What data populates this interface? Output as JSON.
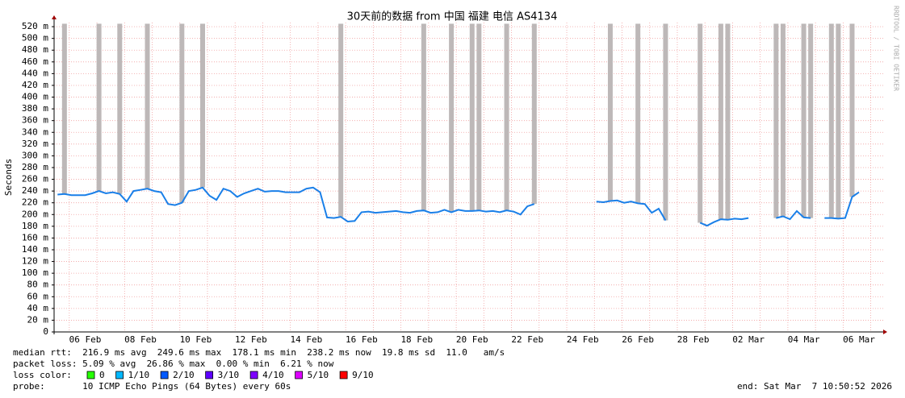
{
  "chart_data": {
    "type": "line",
    "title": "30天前的数据 from 中国 福建 电信 AS4134",
    "ylabel": "Seconds",
    "credit": "RRDTOOL / TOBI OETIKER",
    "color": "#1a7fe8",
    "smoke_color": "#bdb8b8",
    "grid": true,
    "ylim": [
      0,
      527
    ],
    "yticks": [
      0,
      {
        "value": 20,
        "label": "20 m"
      },
      {
        "value": 40,
        "label": "40 m"
      },
      {
        "value": 60,
        "label": "60 m"
      },
      {
        "value": 80,
        "label": "80 m"
      },
      {
        "value": 100,
        "label": "100 m"
      },
      {
        "value": 120,
        "label": "120 m"
      },
      {
        "value": 140,
        "label": "140 m"
      },
      {
        "value": 160,
        "label": "160 m"
      },
      {
        "value": 180,
        "label": "180 m"
      },
      {
        "value": 200,
        "label": "200 m"
      },
      {
        "value": 220,
        "label": "220 m"
      },
      {
        "value": 240,
        "label": "240 m"
      },
      {
        "value": 260,
        "label": "260 m"
      },
      {
        "value": 280,
        "label": "280 m"
      },
      {
        "value": 300,
        "label": "300 m"
      },
      {
        "value": 320,
        "label": "320 m"
      },
      {
        "value": 340,
        "label": "340 m"
      },
      {
        "value": 360,
        "label": "360 m"
      },
      {
        "value": 380,
        "label": "380 m"
      },
      {
        "value": 400,
        "label": "400 m"
      },
      {
        "value": 420,
        "label": "420 m"
      },
      {
        "value": 440,
        "label": "440 m"
      },
      {
        "value": 460,
        "label": "460 m"
      },
      {
        "value": 480,
        "label": "480 m"
      },
      {
        "value": 500,
        "label": "500 m"
      },
      {
        "value": 520,
        "label": "520 m"
      }
    ],
    "categories": [
      null,
      null,
      null,
      null,
      "06 Feb",
      null,
      null,
      null,
      null,
      null,
      null,
      null,
      "08 Feb",
      null,
      null,
      null,
      null,
      null,
      null,
      null,
      "10 Feb",
      null,
      null,
      null,
      null,
      null,
      null,
      null,
      "12 Feb",
      null,
      null,
      null,
      null,
      null,
      null,
      null,
      "14 Feb",
      null,
      null,
      null,
      null,
      null,
      null,
      null,
      "16 Feb",
      null,
      null,
      null,
      null,
      null,
      null,
      null,
      "18 Feb",
      null,
      null,
      null,
      null,
      null,
      null,
      null,
      "20 Feb",
      null,
      null,
      null,
      null,
      null,
      null,
      null,
      "22 Feb",
      null,
      null,
      null,
      null,
      null,
      null,
      null,
      "24 Feb",
      null,
      null,
      null,
      null,
      null,
      null,
      null,
      "26 Feb",
      null,
      null,
      null,
      null,
      null,
      null,
      null,
      "28 Feb",
      null,
      null,
      null,
      null,
      null,
      null,
      null,
      "02 Mar",
      null,
      null,
      null,
      null,
      null,
      null,
      null,
      "04 Mar",
      null,
      null,
      null,
      null,
      null,
      null,
      null,
      "06 Mar",
      null,
      null,
      null
    ],
    "values": [
      234,
      235,
      233,
      233,
      233,
      236,
      240,
      236,
      238,
      235,
      222,
      240,
      242,
      244,
      240,
      238,
      218,
      216,
      220,
      240,
      242,
      246,
      232,
      225,
      244,
      240,
      230,
      236,
      240,
      244,
      239,
      240,
      240,
      238,
      238,
      238,
      244,
      246,
      238,
      195,
      194,
      196,
      188,
      189,
      204,
      205,
      203,
      204,
      205,
      206,
      204,
      203,
      206,
      207,
      203,
      204,
      208,
      204,
      208,
      206,
      206,
      207,
      205,
      206,
      204,
      207,
      205,
      200,
      214,
      218,
      null,
      null,
      null,
      null,
      null,
      null,
      null,
      null,
      222,
      221,
      223,
      224,
      220,
      222,
      219,
      218,
      203,
      210,
      190,
      null,
      null,
      null,
      null,
      186,
      181,
      187,
      192,
      191,
      193,
      192,
      194,
      null,
      null,
      null,
      194,
      197,
      192,
      206,
      195,
      194,
      null,
      194,
      194,
      193,
      194,
      230,
      238,
      null,
      null,
      null
    ],
    "smoke_max": [
      null,
      525,
      null,
      null,
      null,
      null,
      525,
      null,
      null,
      525,
      null,
      null,
      null,
      525,
      null,
      null,
      null,
      null,
      525,
      null,
      null,
      525,
      null,
      null,
      null,
      null,
      null,
      null,
      null,
      null,
      null,
      null,
      null,
      null,
      null,
      null,
      null,
      null,
      null,
      null,
      null,
      525,
      null,
      null,
      null,
      null,
      null,
      null,
      null,
      null,
      null,
      null,
      null,
      525,
      null,
      null,
      null,
      525,
      null,
      null,
      525,
      525,
      null,
      null,
      null,
      525,
      null,
      null,
      null,
      525,
      null,
      null,
      null,
      null,
      null,
      null,
      null,
      null,
      null,
      null,
      525,
      null,
      null,
      null,
      525,
      null,
      null,
      null,
      525,
      null,
      null,
      null,
      null,
      525,
      null,
      null,
      525,
      525,
      null,
      null,
      null,
      null,
      null,
      null,
      525,
      525,
      null,
      null,
      525,
      525,
      null,
      null,
      525,
      525,
      null,
      525,
      null,
      null,
      null,
      null
    ],
    "stats": [
      "median rtt:  216.9 ms avg  249.6 ms max  178.1 ms min  238.2 ms now  19.8 ms sd  11.0   am/s",
      "packet loss: 5.09 % avg  26.86 % max  0.00 % min  6.21 % now"
    ],
    "loss_label": "loss color:",
    "loss_colors": [
      {
        "label": "0",
        "color": "#26ff00"
      },
      {
        "label": "1/10",
        "color": "#00b8ff"
      },
      {
        "label": "2/10",
        "color": "#0059ff"
      },
      {
        "label": "3/10",
        "color": "#5e00ff"
      },
      {
        "label": "4/10",
        "color": "#7e00ff"
      },
      {
        "label": "5/10",
        "color": "#dd00ff"
      },
      {
        "label": "9/10",
        "color": "#ff0000"
      }
    ],
    "probe": "probe:       10 ICMP Echo Pings (64 Bytes) every 60s",
    "end": "end: Sat Mar  7 10:50:52 2026"
  }
}
